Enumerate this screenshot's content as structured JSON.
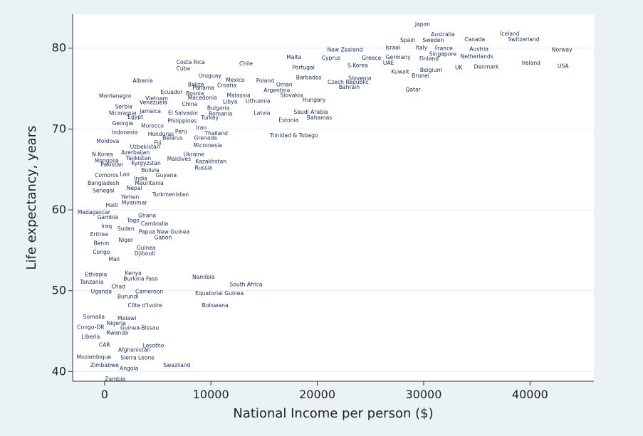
{
  "chart_data": {
    "type": "scatter",
    "title": "",
    "xlabel": "National Income per person ($)",
    "ylabel": "Life expectancy, years",
    "xlim": [
      -3000,
      46000
    ],
    "ylim": [
      38.8,
      84.2
    ],
    "xticks": [
      0,
      10000,
      20000,
      30000,
      40000
    ],
    "xtick_labels": [
      "0",
      "10000",
      "20000",
      "30000",
      "40000"
    ],
    "yticks": [
      40,
      50,
      60,
      70,
      80
    ],
    "ytick_labels": [
      "40",
      "50",
      "60",
      "70",
      "80"
    ],
    "grid": true,
    "marker": "country-name",
    "colors": {
      "outer": "#eaf2f3",
      "plot": "#ffffff",
      "grid": "#e4ecef",
      "label": "#1a2a55",
      "axis": "#333333"
    },
    "points": [
      {
        "name": "Japan",
        "x": 29900,
        "y": 83.0
      },
      {
        "name": "Australia",
        "x": 31800,
        "y": 81.7
      },
      {
        "name": "Iceland",
        "x": 38100,
        "y": 81.8
      },
      {
        "name": "Spain",
        "x": 28500,
        "y": 81.0
      },
      {
        "name": "Sweden",
        "x": 30900,
        "y": 81.0
      },
      {
        "name": "Canada",
        "x": 34800,
        "y": 81.1
      },
      {
        "name": "Switzerland",
        "x": 39400,
        "y": 81.1
      },
      {
        "name": "Israel",
        "x": 27100,
        "y": 80.1
      },
      {
        "name": "Italy",
        "x": 29800,
        "y": 80.1
      },
      {
        "name": "France",
        "x": 31900,
        "y": 80.0
      },
      {
        "name": "Austria",
        "x": 35200,
        "y": 79.9
      },
      {
        "name": "New Zealand",
        "x": 22600,
        "y": 79.8
      },
      {
        "name": "Norway",
        "x": 43000,
        "y": 79.8
      },
      {
        "name": "Singapore",
        "x": 31800,
        "y": 79.3
      },
      {
        "name": "Netherlands",
        "x": 35000,
        "y": 79.0
      },
      {
        "name": "Malta",
        "x": 17800,
        "y": 78.9
      },
      {
        "name": "Cyprus",
        "x": 21300,
        "y": 78.8
      },
      {
        "name": "Greece",
        "x": 25100,
        "y": 78.8
      },
      {
        "name": "Germany",
        "x": 27600,
        "y": 78.9
      },
      {
        "name": "Finland",
        "x": 30500,
        "y": 78.7
      },
      {
        "name": "Costa Rica",
        "x": 8100,
        "y": 78.3
      },
      {
        "name": "UAE",
        "x": 26700,
        "y": 78.2
      },
      {
        "name": "Ireland",
        "x": 40100,
        "y": 78.2
      },
      {
        "name": "Chile",
        "x": 13300,
        "y": 78.1
      },
      {
        "name": "S.Korea",
        "x": 23800,
        "y": 77.9
      },
      {
        "name": "Cuba",
        "x": 7400,
        "y": 77.5
      },
      {
        "name": "Portugal",
        "x": 18700,
        "y": 77.6
      },
      {
        "name": "UK",
        "x": 33300,
        "y": 77.6
      },
      {
        "name": "Denmark",
        "x": 35900,
        "y": 77.7
      },
      {
        "name": "USA",
        "x": 43100,
        "y": 77.8
      },
      {
        "name": "Belgium",
        "x": 30700,
        "y": 77.3
      },
      {
        "name": "Kuwait",
        "x": 27800,
        "y": 77.1
      },
      {
        "name": "Brunei",
        "x": 29700,
        "y": 76.6
      },
      {
        "name": "Uruguay",
        "x": 9900,
        "y": 76.6
      },
      {
        "name": "Barbados",
        "x": 19200,
        "y": 76.4
      },
      {
        "name": "Slovenia",
        "x": 24000,
        "y": 76.3
      },
      {
        "name": "Mexico",
        "x": 12300,
        "y": 76.1
      },
      {
        "name": "Poland",
        "x": 15100,
        "y": 76.0
      },
      {
        "name": "Albania",
        "x": 3600,
        "y": 76.0
      },
      {
        "name": "Czech Republic",
        "x": 22900,
        "y": 75.8
      },
      {
        "name": "Belize",
        "x": 8600,
        "y": 75.5
      },
      {
        "name": "Oman",
        "x": 16900,
        "y": 75.5
      },
      {
        "name": "Croatia",
        "x": 11500,
        "y": 75.4
      },
      {
        "name": "Bahrain",
        "x": 23000,
        "y": 75.2
      },
      {
        "name": "Panama",
        "x": 9300,
        "y": 75.1
      },
      {
        "name": "Qatar",
        "x": 29000,
        "y": 74.9
      },
      {
        "name": "Ecuador",
        "x": 6300,
        "y": 74.6
      },
      {
        "name": "Argentina",
        "x": 16200,
        "y": 74.8
      },
      {
        "name": "Bosnia",
        "x": 8500,
        "y": 74.4
      },
      {
        "name": "Malaysia",
        "x": 12600,
        "y": 74.2
      },
      {
        "name": "Slovakia",
        "x": 17600,
        "y": 74.2
      },
      {
        "name": "Montenegro",
        "x": 1000,
        "y": 74.1
      },
      {
        "name": "Vietnam",
        "x": 4900,
        "y": 73.8
      },
      {
        "name": "Macedonia",
        "x": 9200,
        "y": 73.9
      },
      {
        "name": "Lithuania",
        "x": 14400,
        "y": 73.5
      },
      {
        "name": "Hungary",
        "x": 19700,
        "y": 73.6
      },
      {
        "name": "Libya",
        "x": 11800,
        "y": 73.4
      },
      {
        "name": "Venezuela",
        "x": 4600,
        "y": 73.3
      },
      {
        "name": "China",
        "x": 8000,
        "y": 73.1
      },
      {
        "name": "Serbia",
        "x": 1800,
        "y": 72.8
      },
      {
        "name": "Bulgaria",
        "x": 10700,
        "y": 72.6
      },
      {
        "name": "Jamaica",
        "x": 4300,
        "y": 72.2
      },
      {
        "name": "Nicaragua",
        "x": 1700,
        "y": 72.0
      },
      {
        "name": "El Salvador",
        "x": 7400,
        "y": 72.0
      },
      {
        "name": "Romania",
        "x": 10900,
        "y": 71.9
      },
      {
        "name": "Latvia",
        "x": 14800,
        "y": 72.0
      },
      {
        "name": "Saudi Arabia",
        "x": 19400,
        "y": 72.1
      },
      {
        "name": "Egypt",
        "x": 2900,
        "y": 71.5
      },
      {
        "name": "Turkey",
        "x": 9900,
        "y": 71.4
      },
      {
        "name": "Bahamas",
        "x": 20200,
        "y": 71.4
      },
      {
        "name": "Estonia",
        "x": 17300,
        "y": 71.1
      },
      {
        "name": "Philippines",
        "x": 7300,
        "y": 71.0
      },
      {
        "name": "Georgia",
        "x": 1700,
        "y": 70.7
      },
      {
        "name": "Morocco",
        "x": 4500,
        "y": 70.4
      },
      {
        "name": "Iran",
        "x": 9100,
        "y": 70.2
      },
      {
        "name": "Peru",
        "x": 7200,
        "y": 69.7
      },
      {
        "name": "Indonesia",
        "x": 1900,
        "y": 69.6
      },
      {
        "name": "Thailand",
        "x": 10500,
        "y": 69.5
      },
      {
        "name": "Honduras",
        "x": 5300,
        "y": 69.4
      },
      {
        "name": "Trinidad & Tobago",
        "x": 17800,
        "y": 69.2
      },
      {
        "name": "Belarus",
        "x": 6400,
        "y": 68.9
      },
      {
        "name": "Grenada",
        "x": 9500,
        "y": 68.9
      },
      {
        "name": "Moldova",
        "x": 300,
        "y": 68.5
      },
      {
        "name": "Fiji",
        "x": 5000,
        "y": 68.3
      },
      {
        "name": "Micronesia",
        "x": 9700,
        "y": 68.0
      },
      {
        "name": "Uzbekistan",
        "x": 3800,
        "y": 67.8
      },
      {
        "name": "Azerbaijan",
        "x": 2900,
        "y": 67.1
      },
      {
        "name": "N.Korea",
        "x": -200,
        "y": 66.9
      },
      {
        "name": "Ukraine",
        "x": 8400,
        "y": 66.9
      },
      {
        "name": "Tajikistan",
        "x": 3200,
        "y": 66.4
      },
      {
        "name": "Maldives",
        "x": 7000,
        "y": 66.3
      },
      {
        "name": "Mongolia",
        "x": 200,
        "y": 66.1
      },
      {
        "name": "Kazakhstan",
        "x": 10000,
        "y": 66.0
      },
      {
        "name": "Kyrgyzstan",
        "x": 3900,
        "y": 65.8
      },
      {
        "name": "Pakistan",
        "x": 700,
        "y": 65.6
      },
      {
        "name": "Russia",
        "x": 9300,
        "y": 65.2
      },
      {
        "name": "Bolivia",
        "x": 4300,
        "y": 64.9
      },
      {
        "name": "Comoros",
        "x": 200,
        "y": 64.3
      },
      {
        "name": "Lao",
        "x": 1900,
        "y": 64.4
      },
      {
        "name": "Guyana",
        "x": 5800,
        "y": 64.3
      },
      {
        "name": "India",
        "x": 3400,
        "y": 63.9
      },
      {
        "name": "Bangladesh",
        "x": -100,
        "y": 63.3
      },
      {
        "name": "Mauritania",
        "x": 4200,
        "y": 63.3
      },
      {
        "name": "Nepal",
        "x": 2800,
        "y": 62.7
      },
      {
        "name": "Senegal",
        "x": -100,
        "y": 62.4
      },
      {
        "name": "Turkmenistan",
        "x": 6200,
        "y": 61.9
      },
      {
        "name": "Yemen",
        "x": 2400,
        "y": 61.6
      },
      {
        "name": "Myanmar",
        "x": 2800,
        "y": 60.9
      },
      {
        "name": "Haiti",
        "x": 700,
        "y": 60.6
      },
      {
        "name": "Madagascar",
        "x": -1000,
        "y": 59.7
      },
      {
        "name": "Ghana",
        "x": 4000,
        "y": 59.3
      },
      {
        "name": "Gambia",
        "x": 300,
        "y": 59.1
      },
      {
        "name": "Togo",
        "x": 2700,
        "y": 58.7
      },
      {
        "name": "Cambodia",
        "x": 4700,
        "y": 58.3
      },
      {
        "name": "Iraq",
        "x": 200,
        "y": 58.0
      },
      {
        "name": "Sudan",
        "x": 2000,
        "y": 57.7
      },
      {
        "name": "Papua New Guinea",
        "x": 5600,
        "y": 57.3
      },
      {
        "name": "Eritrea",
        "x": -500,
        "y": 57.0
      },
      {
        "name": "Gabon",
        "x": 5500,
        "y": 56.6
      },
      {
        "name": "Niger",
        "x": 2000,
        "y": 56.3
      },
      {
        "name": "Benin",
        "x": -300,
        "y": 55.9
      },
      {
        "name": "Guinea",
        "x": 3900,
        "y": 55.3
      },
      {
        "name": "Congo",
        "x": -300,
        "y": 54.8
      },
      {
        "name": "Djibouti",
        "x": 3800,
        "y": 54.6
      },
      {
        "name": "Mali",
        "x": 900,
        "y": 53.9
      },
      {
        "name": "Kenya",
        "x": 2700,
        "y": 52.2
      },
      {
        "name": "Ethiopia",
        "x": -800,
        "y": 52.0
      },
      {
        "name": "Namibia",
        "x": 9300,
        "y": 51.7
      },
      {
        "name": "Burkina Faso",
        "x": 3400,
        "y": 51.5
      },
      {
        "name": "Tanzania",
        "x": -1200,
        "y": 51.1
      },
      {
        "name": "South Africa",
        "x": 13300,
        "y": 50.8
      },
      {
        "name": "Chad",
        "x": 1300,
        "y": 50.5
      },
      {
        "name": "Uganda",
        "x": -300,
        "y": 49.9
      },
      {
        "name": "Cameroon",
        "x": 4200,
        "y": 49.9
      },
      {
        "name": "Equatorial Guinea",
        "x": 10800,
        "y": 49.7
      },
      {
        "name": "Burundi",
        "x": 2200,
        "y": 49.3
      },
      {
        "name": "Côte d'Ivoire",
        "x": 3800,
        "y": 48.2
      },
      {
        "name": "Botswana",
        "x": 10400,
        "y": 48.2
      },
      {
        "name": "Somalia",
        "x": -1000,
        "y": 46.8
      },
      {
        "name": "Malawi",
        "x": 2100,
        "y": 46.6
      },
      {
        "name": "Nigeria",
        "x": 1100,
        "y": 46.0
      },
      {
        "name": "Congo-DR",
        "x": -1300,
        "y": 45.5
      },
      {
        "name": "Guinea-Bissau",
        "x": 3300,
        "y": 45.4
      },
      {
        "name": "Rwanda",
        "x": 1200,
        "y": 44.8
      },
      {
        "name": "Liberia",
        "x": -1300,
        "y": 44.3
      },
      {
        "name": "CAR",
        "x": 0,
        "y": 43.3
      },
      {
        "name": "Lesotho",
        "x": 4600,
        "y": 43.2
      },
      {
        "name": "Afghanistan",
        "x": 2800,
        "y": 42.7
      },
      {
        "name": "Mozambique",
        "x": -1000,
        "y": 41.8
      },
      {
        "name": "Sierra Leone",
        "x": 3100,
        "y": 41.7
      },
      {
        "name": "Zimbabwe",
        "x": 0,
        "y": 40.8
      },
      {
        "name": "Swaziland",
        "x": 6800,
        "y": 40.8
      },
      {
        "name": "Angola",
        "x": 2300,
        "y": 40.4
      },
      {
        "name": "Zambia",
        "x": 1000,
        "y": 39.1
      }
    ]
  }
}
